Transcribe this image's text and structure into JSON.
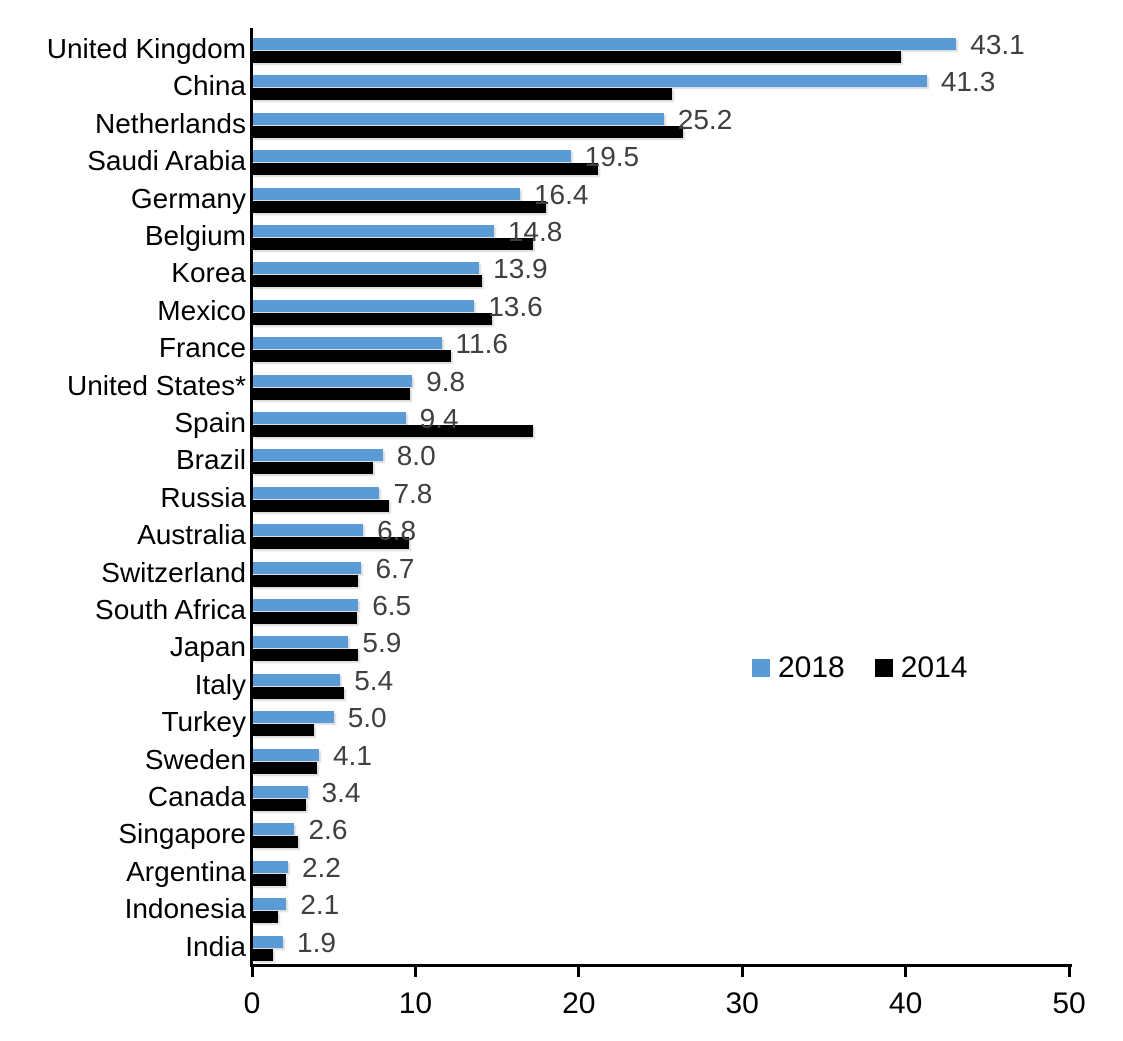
{
  "chart_data": {
    "type": "bar",
    "orientation": "horizontal",
    "title": "",
    "xlabel": "",
    "ylabel": "",
    "xlim": [
      0,
      50
    ],
    "x_ticks": [
      "0",
      "10",
      "20",
      "30",
      "40",
      "50"
    ],
    "grid": false,
    "legend": {
      "position": "middle-right",
      "entries": [
        "2018",
        "2014"
      ]
    },
    "categories": [
      "United Kingdom",
      "China",
      "Netherlands",
      "Saudi Arabia",
      "Germany",
      "Belgium",
      "Korea",
      "Mexico",
      "France",
      "United States*",
      "Spain",
      "Brazil",
      "Russia",
      "Australia",
      "Switzerland",
      "South Africa",
      "Japan",
      "Italy",
      "Turkey",
      "Sweden",
      "Canada",
      "Singapore",
      "Argentina",
      "Indonesia",
      "India"
    ],
    "series": [
      {
        "name": "2018",
        "color": "#5B9BD5",
        "values": [
          43.1,
          41.3,
          25.2,
          19.5,
          16.4,
          14.8,
          13.9,
          13.6,
          11.6,
          9.8,
          9.4,
          8.0,
          7.8,
          6.8,
          6.7,
          6.5,
          5.9,
          5.4,
          5.0,
          4.1,
          3.4,
          2.6,
          2.2,
          2.1,
          1.9
        ]
      },
      {
        "name": "2014",
        "color": "#000000",
        "values": [
          39.7,
          25.7,
          26.4,
          21.2,
          18.0,
          17.2,
          14.1,
          14.7,
          12.2,
          9.7,
          17.2,
          7.4,
          8.4,
          9.6,
          6.5,
          6.4,
          6.5,
          5.6,
          3.8,
          4.0,
          3.3,
          2.8,
          2.1,
          1.6,
          1.3
        ]
      }
    ],
    "data_labels": [
      "43.1",
      "41.3",
      "25.2",
      "19.5",
      "16.4",
      "14.8",
      "13.9",
      "13.6",
      "11.6",
      "9.8",
      "9.4",
      "8.0",
      "7.8",
      "6.8",
      "6.7",
      "6.5",
      "5.9",
      "5.4",
      "5.0",
      "4.1",
      "3.4",
      "2.6",
      "2.2",
      "2.1",
      "1.9"
    ],
    "data_label_series": "2018",
    "data_label_color": "#404040",
    "axis_color": "#000000"
  }
}
